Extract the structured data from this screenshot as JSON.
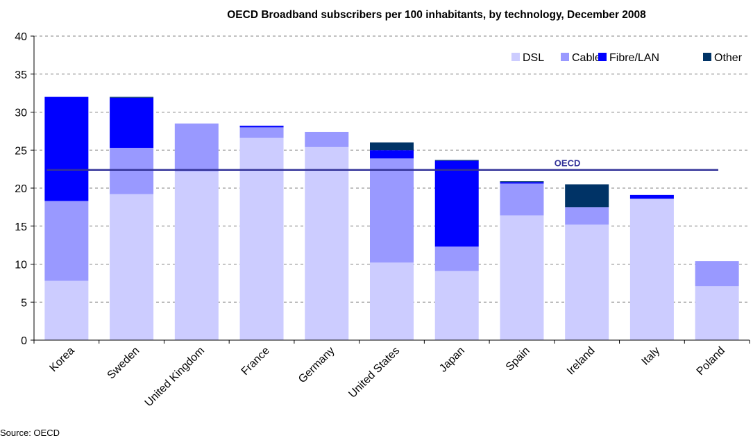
{
  "chart_data": {
    "type": "bar",
    "stacked": true,
    "title": "OECD Broadband subscribers per 100 inhabitants, by technology, December 2008",
    "xlabel": "",
    "ylabel": "",
    "ylim": [
      0,
      40
    ],
    "yticks": [
      0,
      5,
      10,
      15,
      20,
      25,
      30,
      35,
      40
    ],
    "grid": "horizontal dashed",
    "legend_position": "top-right",
    "categories": [
      "Korea",
      "Sweden",
      "United Kingdom",
      "France",
      "Germany",
      "United States",
      "Japan",
      "Spain",
      "Ireland",
      "Italy",
      "Poland"
    ],
    "series": [
      {
        "name": "DSL",
        "color": "#ccccff",
        "values": [
          7.8,
          19.2,
          22.2,
          26.6,
          25.4,
          10.2,
          9.1,
          16.4,
          15.2,
          18.6,
          7.1
        ]
      },
      {
        "name": "Cable",
        "color": "#9999ff",
        "values": [
          10.5,
          6.1,
          6.3,
          1.4,
          2.0,
          13.7,
          3.2,
          4.2,
          2.3,
          0.0,
          3.3
        ]
      },
      {
        "name": "Fibre/LAN",
        "color": "#0000ff",
        "values": [
          13.7,
          6.6,
          0.0,
          0.2,
          0.0,
          1.1,
          11.3,
          0.2,
          0.0,
          0.5,
          0.0
        ]
      },
      {
        "name": "Other",
        "color": "#003366",
        "values": [
          0.0,
          0.1,
          0.0,
          0.0,
          0.0,
          1.0,
          0.1,
          0.1,
          3.0,
          0.0,
          0.0
        ]
      }
    ],
    "reference_line": {
      "label": "OECD",
      "value": 22.4,
      "color": "#333399"
    }
  },
  "source": "Source: OECD"
}
